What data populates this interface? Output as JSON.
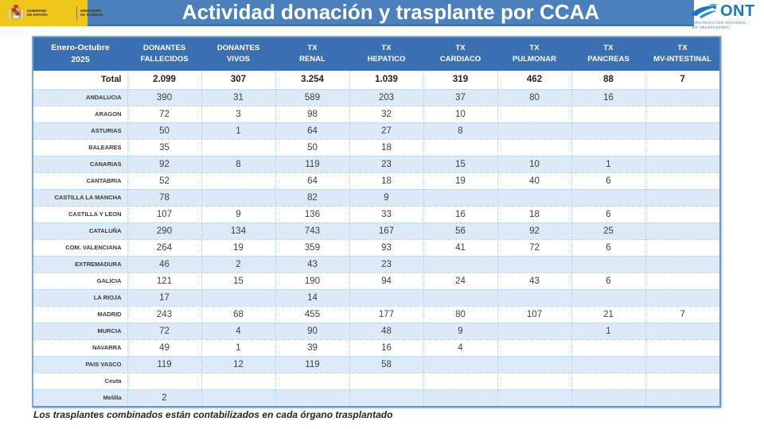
{
  "header": {
    "title": "Actividad donación y trasplante por CCAA",
    "gov_logo": {
      "government": "GOBIERNO\nDE ESPAÑA",
      "ministry": "MINISTERIO\nDE SANIDAD"
    },
    "ont_logo": {
      "acronym": "ONT",
      "tagline": "ORGANIZACIÓN NACIONAL\nDE TRASPLANTES"
    }
  },
  "table": {
    "period_header": "Enero-Octubre\n2025",
    "columns": [
      "DONANTES\nFALLECIDOS",
      "DONANTES\nVIVOS",
      "TX\nRENAL",
      "TX\nHEPATICO",
      "TX\nCARDIACO",
      "TX\nPULMONAR",
      "TX\nPANCREAS",
      "TX\nMV-INTESTINAL"
    ],
    "total_row": {
      "label": "Total",
      "values": [
        "2.099",
        "307",
        "3.254",
        "1.039",
        "319",
        "462",
        "88",
        "7"
      ]
    },
    "rows": [
      {
        "label": "ANDALUCIA",
        "values": [
          "390",
          "31",
          "589",
          "203",
          "37",
          "80",
          "16",
          ""
        ]
      },
      {
        "label": "ARAGON",
        "values": [
          "72",
          "3",
          "98",
          "32",
          "10",
          "",
          "",
          ""
        ]
      },
      {
        "label": "ASTURIAS",
        "values": [
          "50",
          "1",
          "64",
          "27",
          "8",
          "",
          "",
          ""
        ]
      },
      {
        "label": "BALEARES",
        "values": [
          "35",
          "",
          "50",
          "18",
          "",
          "",
          "",
          ""
        ]
      },
      {
        "label": "CANARIAS",
        "values": [
          "92",
          "8",
          "119",
          "23",
          "15",
          "10",
          "1",
          ""
        ]
      },
      {
        "label": "CANTABRIA",
        "values": [
          "52",
          "",
          "64",
          "18",
          "19",
          "40",
          "6",
          ""
        ]
      },
      {
        "label": "CASTILLA LA MANCHA",
        "values": [
          "78",
          "",
          "82",
          "9",
          "",
          "",
          "",
          ""
        ]
      },
      {
        "label": "CASTILLA Y LEON",
        "values": [
          "107",
          "9",
          "136",
          "33",
          "16",
          "18",
          "6",
          ""
        ]
      },
      {
        "label": "CATALUÑA",
        "values": [
          "290",
          "134",
          "743",
          "167",
          "56",
          "92",
          "25",
          ""
        ]
      },
      {
        "label": "COM. VALENCIANA",
        "values": [
          "264",
          "19",
          "359",
          "93",
          "41",
          "72",
          "6",
          ""
        ]
      },
      {
        "label": "EXTREMADURA",
        "values": [
          "46",
          "2",
          "43",
          "23",
          "",
          "",
          "",
          ""
        ]
      },
      {
        "label": "GALICIA",
        "values": [
          "121",
          "15",
          "190",
          "94",
          "24",
          "43",
          "6",
          ""
        ]
      },
      {
        "label": "LA RIOJA",
        "values": [
          "17",
          "",
          "14",
          "",
          "",
          "",
          "",
          ""
        ]
      },
      {
        "label": "MADRID",
        "values": [
          "243",
          "68",
          "455",
          "177",
          "80",
          "107",
          "21",
          "7"
        ]
      },
      {
        "label": "MURCIA",
        "values": [
          "72",
          "4",
          "90",
          "48",
          "9",
          "",
          "1",
          ""
        ]
      },
      {
        "label": "NAVARRA",
        "values": [
          "49",
          "1",
          "39",
          "16",
          "4",
          "",
          "",
          ""
        ]
      },
      {
        "label": "PAIS VASCO",
        "values": [
          "119",
          "12",
          "119",
          "58",
          "",
          "",
          "",
          ""
        ]
      },
      {
        "label": "Ceuta",
        "values": [
          "",
          "",
          "",
          "",
          "",
          "",
          "",
          ""
        ]
      },
      {
        "label": "Melilla",
        "values": [
          "2",
          "",
          "",
          "",
          "",
          "",
          "",
          ""
        ]
      }
    ]
  },
  "footer": {
    "note": "Los trasplantes combinados están contabilizados en cada órgano  trasplantado"
  },
  "colors": {
    "gov_yellow": "#F0C61B",
    "title_bar_blue": "#4C80BC",
    "table_header_blue": "#3A70B2",
    "row_alt_blue": "#DCE9F6",
    "dotted_border_blue": "#AECBE8",
    "ont_blue": "#1C75BC",
    "ont_teal": "#4BA6AE"
  }
}
